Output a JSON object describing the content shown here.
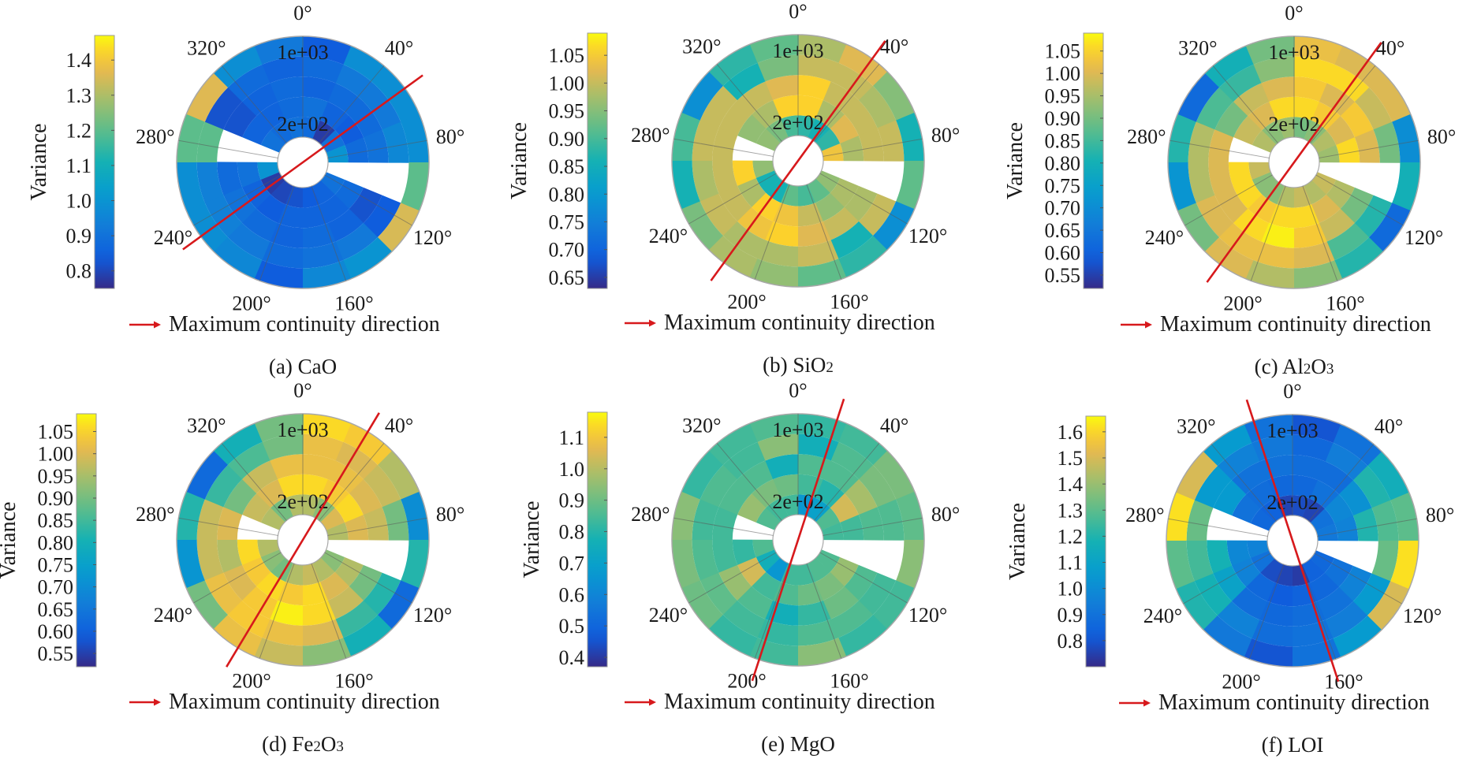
{
  "figure": {
    "legend_label": "Maximum continuity direction",
    "legend_color": "#d7191c",
    "colormap": "viridis-like (parula)",
    "angle_labels": [
      "0°",
      "40°",
      "80°",
      "120°",
      "160°",
      "200°",
      "240°",
      "280°",
      "320°"
    ],
    "radial_labels": [
      "1e+03",
      "2e+02"
    ],
    "colorbar_label": "Variance"
  },
  "chart_data": [
    {
      "type": "heatmap",
      "subtype": "polar-sector-heatmap",
      "panel": "a",
      "caption": "(a) CaO",
      "caption_parts": [
        "(a) CaO"
      ],
      "colorbar_label": "Variance",
      "colorbar_ticks": [
        "0.8",
        "0.9",
        "1.0",
        "1.1",
        "1.2",
        "1.3",
        "1.4"
      ],
      "colorbar_range": [
        0.75,
        1.47
      ],
      "max_continuity_direction_deg": 54,
      "sectors_deg": 22.5,
      "rings": 5,
      "values": [
        [
          0.88,
          0.9,
          0.86,
          0.88,
          0.84
        ],
        [
          0.78,
          0.86,
          0.88,
          0.92,
          0.98
        ],
        [
          0.9,
          0.84,
          0.88,
          0.92,
          0.98
        ],
        [
          1.0,
          0.88,
          0.9,
          0.96,
          0.98
        ],
        [
          null,
          null,
          null,
          null,
          1.2
        ],
        [
          0.9,
          0.88,
          0.82,
          0.84,
          1.35
        ],
        [
          0.86,
          0.86,
          0.86,
          0.92,
          1.0
        ],
        [
          0.84,
          0.86,
          0.88,
          0.9,
          0.96
        ],
        [
          0.82,
          0.86,
          0.86,
          0.88,
          0.84
        ],
        [
          0.8,
          0.84,
          0.88,
          0.92,
          0.96
        ],
        [
          0.78,
          0.86,
          0.9,
          0.94,
          0.98
        ],
        [
          1.0,
          0.9,
          0.88,
          0.94,
          0.98
        ],
        [
          null,
          null,
          null,
          1.2,
          1.2
        ],
        [
          0.9,
          0.86,
          0.82,
          0.82,
          1.36
        ],
        [
          0.88,
          0.86,
          0.86,
          0.88,
          0.98
        ],
        [
          0.9,
          0.88,
          0.88,
          0.86,
          0.92
        ]
      ]
    },
    {
      "type": "heatmap",
      "subtype": "polar-sector-heatmap",
      "panel": "b",
      "caption": "(b) SiO2",
      "caption_parts": [
        "(b) SiO",
        "2"
      ],
      "colorbar_label": "Variance",
      "colorbar_ticks": [
        "0.65",
        "0.70",
        "0.75",
        "0.80",
        "0.85",
        "0.90",
        "0.95",
        "1.00",
        "1.05"
      ],
      "colorbar_range": [
        0.63,
        1.09
      ],
      "max_continuity_direction_deg": 36,
      "sectors_deg": 22.5,
      "rings": 5,
      "values": [
        [
          0.88,
          1.06,
          1.06,
          1.0,
          0.98
        ],
        [
          0.86,
          0.98,
          1.0,
          1.0,
          1.02
        ],
        [
          0.88,
          1.02,
          1.0,
          0.98,
          0.95
        ],
        [
          1.04,
          0.98,
          1.0,
          1.0,
          0.86
        ],
        [
          null,
          null,
          null,
          null,
          0.92
        ],
        [
          0.96,
          0.98,
          0.98,
          1.0,
          0.78
        ],
        [
          0.92,
          0.96,
          1.0,
          0.86,
          0.88
        ],
        [
          0.9,
          1.0,
          1.02,
          1.0,
          0.92
        ],
        [
          0.92,
          1.04,
          1.06,
          0.98,
          0.96
        ],
        [
          0.86,
          1.06,
          1.04,
          0.98,
          0.98
        ],
        [
          0.86,
          0.98,
          1.0,
          1.0,
          0.94
        ],
        [
          0.96,
          1.06,
          1.0,
          0.98,
          0.86
        ],
        [
          null,
          null,
          1.0,
          1.0,
          0.9
        ],
        [
          0.96,
          0.96,
          1.0,
          1.0,
          0.78
        ],
        [
          0.94,
          0.98,
          1.0,
          0.86,
          0.88
        ],
        [
          0.9,
          1.06,
          1.02,
          0.94,
          0.92
        ]
      ]
    },
    {
      "type": "heatmap",
      "subtype": "polar-sector-heatmap",
      "panel": "c",
      "caption": "(c) Al2O3",
      "caption_parts": [
        "(c) Al",
        "2",
        "O",
        "3"
      ],
      "colorbar_label": "Variance",
      "colorbar_ticks": [
        "0.55",
        "0.60",
        "0.65",
        "0.70",
        "0.75",
        "0.80",
        "0.85",
        "0.90",
        "0.95",
        "1.00",
        "1.05"
      ],
      "colorbar_range": [
        0.52,
        1.09
      ],
      "max_continuity_direction_deg": 36,
      "sectors_deg": 22.5,
      "rings": 5,
      "values": [
        [
          0.9,
          1.06,
          1.04,
          1.06,
          1.02
        ],
        [
          0.92,
          1.04,
          1.0,
          1.06,
          1.0
        ],
        [
          0.96,
          1.0,
          1.04,
          0.98,
          1.0
        ],
        [
          0.94,
          1.06,
          1.0,
          0.9,
          0.7
        ],
        [
          null,
          null,
          null,
          null,
          0.8
        ],
        [
          0.98,
          0.96,
          0.9,
          0.82,
          0.62
        ],
        [
          0.96,
          1.0,
          0.98,
          0.86,
          0.82
        ],
        [
          0.98,
          1.06,
          1.04,
          1.0,
          0.92
        ],
        [
          0.96,
          1.06,
          1.08,
          1.02,
          0.96
        ],
        [
          0.92,
          1.04,
          1.06,
          1.02,
          1.0
        ],
        [
          0.92,
          1.06,
          1.0,
          1.0,
          0.9
        ],
        [
          0.98,
          1.06,
          1.0,
          0.96,
          0.72
        ],
        [
          null,
          null,
          1.0,
          0.96,
          0.82
        ],
        [
          0.96,
          0.98,
          0.9,
          0.86,
          0.62
        ],
        [
          0.92,
          1.0,
          0.98,
          0.84,
          0.8
        ],
        [
          0.94,
          1.06,
          1.0,
          0.92,
          0.9
        ]
      ]
    },
    {
      "type": "heatmap",
      "subtype": "polar-sector-heatmap",
      "panel": "d",
      "caption": "(d) Fe2O3",
      "caption_parts": [
        "(d) Fe",
        "2",
        "O",
        "3"
      ],
      "colorbar_label": "Variance",
      "colorbar_ticks": [
        "0.55",
        "0.60",
        "0.65",
        "0.70",
        "0.75",
        "0.80",
        "0.85",
        "0.90",
        "0.95",
        "1.00",
        "1.05"
      ],
      "colorbar_range": [
        0.52,
        1.09
      ],
      "max_continuity_direction_deg": 31,
      "sectors_deg": 22.5,
      "rings": 5,
      "values": [
        [
          0.96,
          1.06,
          1.02,
          1.02,
          1.06
        ],
        [
          0.92,
          1.04,
          1.02,
          1.0,
          1.04
        ],
        [
          1.0,
          1.06,
          1.0,
          0.98,
          0.96
        ],
        [
          0.96,
          1.0,
          0.98,
          0.9,
          0.7
        ],
        [
          null,
          null,
          null,
          null,
          0.82
        ],
        [
          0.92,
          0.96,
          0.9,
          0.82,
          0.62
        ],
        [
          0.96,
          1.0,
          0.98,
          0.84,
          0.8
        ],
        [
          0.98,
          1.06,
          1.06,
          1.0,
          0.92
        ],
        [
          0.96,
          1.04,
          1.08,
          1.02,
          0.98
        ],
        [
          0.9,
          1.06,
          1.04,
          1.04,
          1.02
        ],
        [
          0.92,
          1.04,
          1.0,
          1.02,
          0.9
        ],
        [
          0.96,
          1.06,
          0.96,
          0.98,
          0.72
        ],
        [
          null,
          null,
          1.0,
          0.98,
          0.82
        ],
        [
          0.96,
          0.98,
          0.9,
          0.84,
          0.62
        ],
        [
          0.9,
          1.0,
          0.98,
          0.86,
          0.8
        ],
        [
          0.96,
          1.06,
          1.02,
          0.9,
          0.9
        ]
      ]
    },
    {
      "type": "heatmap",
      "subtype": "polar-sector-heatmap",
      "panel": "e",
      "caption": "(e) MgO",
      "caption_parts": [
        "(e) MgO"
      ],
      "colorbar_label": "Variance",
      "colorbar_ticks": [
        "0.4",
        "0.5",
        "0.6",
        "0.7",
        "0.8",
        "0.9",
        "1.0",
        "1.1"
      ],
      "colorbar_range": [
        0.37,
        1.18
      ],
      "max_continuity_direction_deg": 18,
      "sectors_deg": 22.5,
      "rings": 5,
      "values": [
        [
          0.66,
          0.84,
          0.86,
          0.76,
          0.82
        ],
        [
          0.7,
          0.8,
          0.86,
          0.86,
          0.84
        ],
        [
          0.86,
          1.04,
          0.98,
          0.92,
          0.92
        ],
        [
          0.84,
          0.84,
          0.86,
          0.86,
          0.88
        ],
        [
          null,
          null,
          null,
          null,
          0.94
        ],
        [
          0.86,
          0.96,
          0.86,
          0.84,
          0.84
        ],
        [
          0.86,
          0.92,
          0.9,
          0.86,
          0.82
        ],
        [
          0.84,
          0.9,
          0.82,
          0.86,
          0.94
        ],
        [
          0.84,
          0.86,
          0.76,
          0.82,
          0.84
        ],
        [
          0.66,
          0.84,
          0.86,
          0.84,
          0.82
        ],
        [
          0.76,
          1.04,
          0.96,
          0.88,
          0.9
        ],
        [
          0.86,
          0.82,
          0.84,
          0.86,
          0.92
        ],
        [
          null,
          null,
          0.84,
          0.84,
          0.94
        ],
        [
          0.86,
          0.96,
          0.86,
          0.86,
          0.82
        ],
        [
          0.84,
          0.92,
          0.86,
          0.84,
          0.84
        ],
        [
          0.84,
          0.9,
          0.76,
          0.94,
          0.86
        ]
      ]
    },
    {
      "type": "heatmap",
      "subtype": "polar-sector-heatmap",
      "panel": "f",
      "caption": "(f) LOI",
      "caption_parts": [
        "(f) LOI"
      ],
      "colorbar_label": "Variance",
      "colorbar_ticks": [
        "0.8",
        "0.9",
        "1.0",
        "1.1",
        "1.2",
        "1.3",
        "1.4",
        "1.5",
        "1.6"
      ],
      "colorbar_range": [
        0.7,
        1.66
      ],
      "max_continuity_direction_deg": 162,
      "sectors_deg": 22.5,
      "rings": 5,
      "values": [
        [
          0.78,
          0.86,
          0.88,
          0.86,
          0.8
        ],
        [
          0.76,
          0.9,
          0.88,
          0.94,
          0.9
        ],
        [
          0.9,
          0.98,
          1.02,
          1.2,
          1.16
        ],
        [
          0.92,
          0.96,
          1.2,
          1.28,
          1.3
        ],
        [
          null,
          null,
          null,
          1.32,
          1.62
        ],
        [
          0.86,
          0.9,
          0.96,
          1.06,
          1.5
        ],
        [
          0.84,
          0.86,
          0.9,
          0.94,
          1.06
        ],
        [
          0.74,
          0.84,
          0.88,
          0.9,
          0.9
        ],
        [
          0.76,
          0.82,
          0.86,
          0.88,
          0.8
        ],
        [
          0.78,
          0.86,
          0.88,
          0.96,
          0.92
        ],
        [
          0.9,
          0.96,
          1.1,
          1.18,
          1.2
        ],
        [
          0.96,
          0.98,
          1.18,
          1.26,
          1.3
        ],
        [
          null,
          null,
          null,
          1.32,
          1.62
        ],
        [
          0.86,
          0.9,
          1.06,
          1.06,
          1.5
        ],
        [
          0.84,
          0.88,
          0.9,
          0.96,
          1.06
        ],
        [
          0.76,
          0.86,
          0.9,
          0.92,
          0.9
        ]
      ]
    }
  ]
}
